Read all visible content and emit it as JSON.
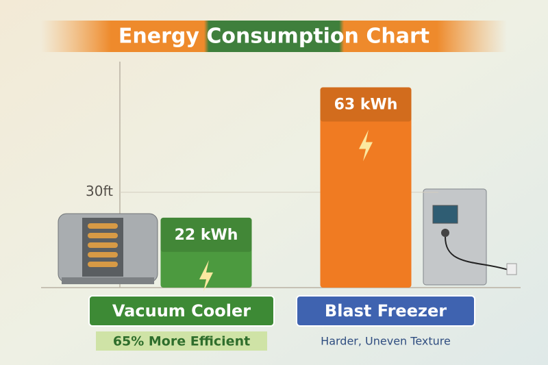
{
  "chart_data": {
    "type": "bar",
    "title": "Energy Consumption Chart",
    "categories": [
      "Vacuum Cooler",
      "Blast Freezer"
    ],
    "values": [
      22,
      63
    ],
    "value_labels": [
      "22 kWh",
      "63 kWh"
    ],
    "colors": [
      "#4c9a3f",
      "#f07b22"
    ],
    "label_colors": [
      "#3d8a35",
      "#3f63b0"
    ],
    "annotations": [
      "65% More Efficient",
      "Harder, Uneven Texture"
    ],
    "ylim": [
      0,
      70
    ],
    "yticks": [
      {
        "value": 30,
        "label": "30ft"
      }
    ],
    "grid": true
  }
}
